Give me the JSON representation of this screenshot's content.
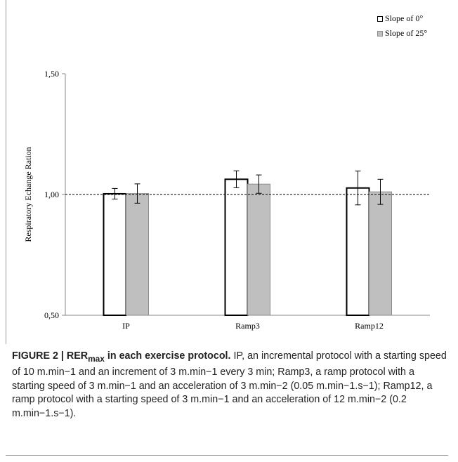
{
  "chart_data": {
    "type": "bar",
    "categories": [
      "IP",
      "Ramp3",
      "Ramp12"
    ],
    "series": [
      {
        "name": "Slope of  0°",
        "values": [
          1.003,
          1.063,
          1.027
        ],
        "errors": [
          0.022,
          0.035,
          0.07
        ],
        "color": "#ffffff",
        "stroke": "#000000"
      },
      {
        "name": "Slope of  25°",
        "values": [
          1.004,
          1.043,
          1.011
        ],
        "errors": [
          0.04,
          0.038,
          0.052
        ],
        "color": "#bfbfbf",
        "stroke": "#8a8a8a"
      }
    ],
    "ylabel": "Respiratory Echange Ration",
    "ylim": [
      0.5,
      1.5
    ],
    "yticks": [
      "0,50",
      "1,00",
      "1,50"
    ],
    "reference_line": 1.0,
    "legend_position": "top-right",
    "grid": false
  },
  "caption": {
    "label": "FIGURE 2 | RER",
    "label_sub": "max",
    "label_rest": " in each exercise protocol.",
    "text": " IP, an incremental protocol with a starting speed of 10 m.min−1 and an increment of 3 m.min−1 every 3 min; Ramp3, a ramp protocol with a starting speed of 3 m.min−1 and an acceleration of 3 m.min−2 (0.05 m.min−1.s−1); Ramp12, a ramp protocol with a starting speed of 3 m.min−1 and an acceleration of 12 m.min−2 (0.2 m.min−1.s−1)."
  }
}
